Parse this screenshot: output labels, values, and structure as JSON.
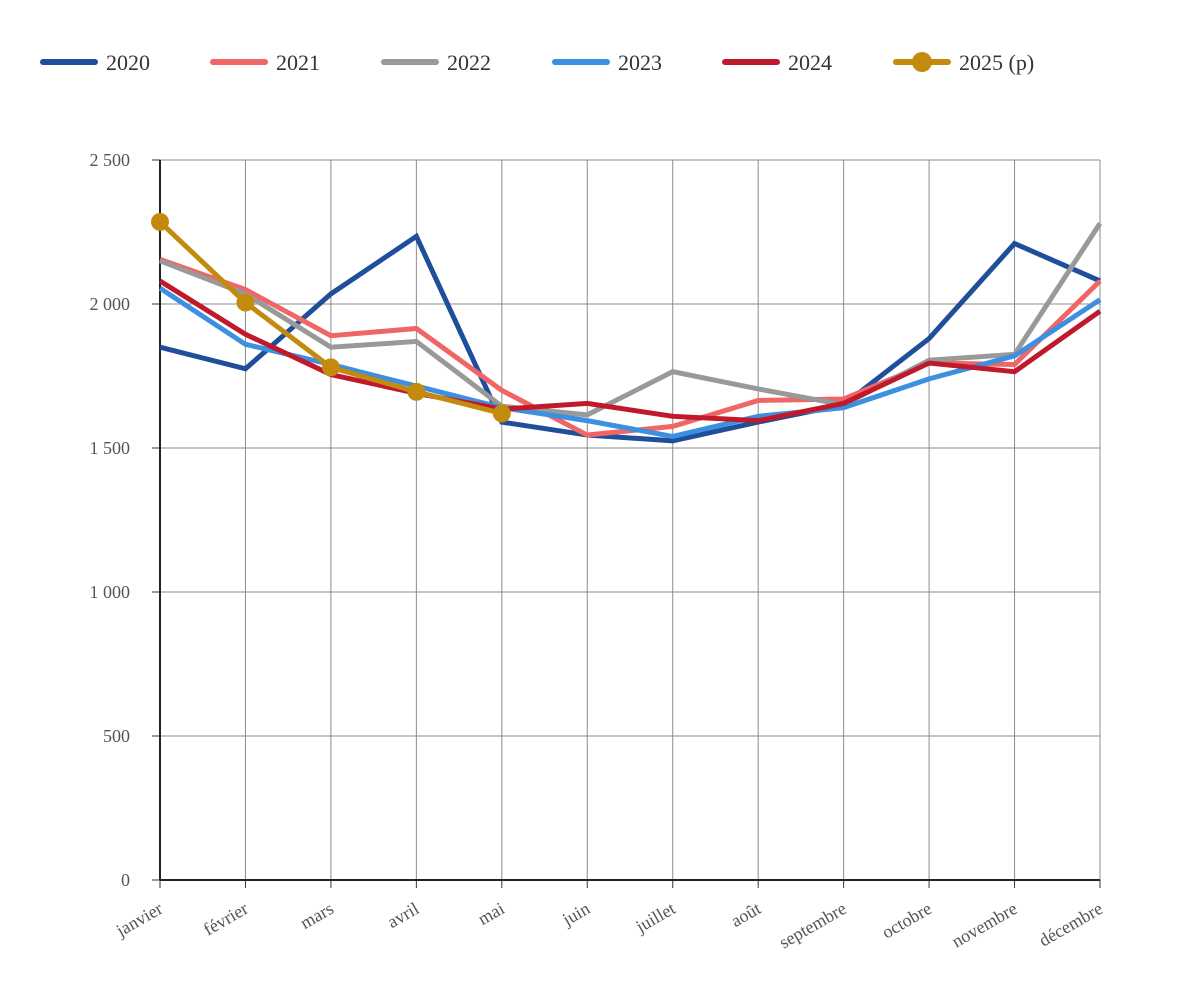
{
  "chart_data": {
    "type": "line",
    "title": "",
    "xlabel": "",
    "ylabel": "",
    "categories": [
      "janvier",
      "février",
      "mars",
      "avril",
      "mai",
      "juin",
      "juillet",
      "août",
      "septembre",
      "octobre",
      "novembre",
      "décembre"
    ],
    "ylim": [
      0,
      2500
    ],
    "yticks": [
      0,
      500,
      1000,
      1500,
      2000,
      2500
    ],
    "ytick_labels": [
      "0",
      "500",
      "1 000",
      "1 500",
      "2 000",
      "2 500"
    ],
    "grid": true,
    "legend_position": "top",
    "series": [
      {
        "name": "2020",
        "color": "#1f4e9a",
        "markers": false,
        "values": [
          1850,
          1775,
          2035,
          2235,
          1590,
          1545,
          1525,
          1590,
          1650,
          1880,
          2210,
          2080
        ]
      },
      {
        "name": "2021",
        "color": "#f06565",
        "markers": false,
        "values": [
          2155,
          2050,
          1890,
          1915,
          1700,
          1545,
          1575,
          1665,
          1670,
          1795,
          1790,
          2080
        ]
      },
      {
        "name": "2022",
        "color": "#999999",
        "markers": false,
        "values": [
          2150,
          2035,
          1850,
          1870,
          1645,
          1615,
          1765,
          1705,
          1650,
          1805,
          1825,
          2280
        ]
      },
      {
        "name": "2023",
        "color": "#3d8fe0",
        "markers": false,
        "values": [
          2055,
          1860,
          1790,
          1715,
          1640,
          1595,
          1540,
          1610,
          1640,
          1740,
          1820,
          2015
        ]
      },
      {
        "name": "2024",
        "color": "#c0192b",
        "markers": false,
        "values": [
          2080,
          1895,
          1755,
          1690,
          1635,
          1655,
          1610,
          1595,
          1655,
          1795,
          1765,
          1975
        ]
      },
      {
        "name": "2025 (p)",
        "color": "#c38a0e",
        "markers": true,
        "values": [
          2285,
          2005,
          1780,
          1695,
          1620,
          null,
          null,
          null,
          null,
          null,
          null,
          null
        ]
      }
    ]
  }
}
